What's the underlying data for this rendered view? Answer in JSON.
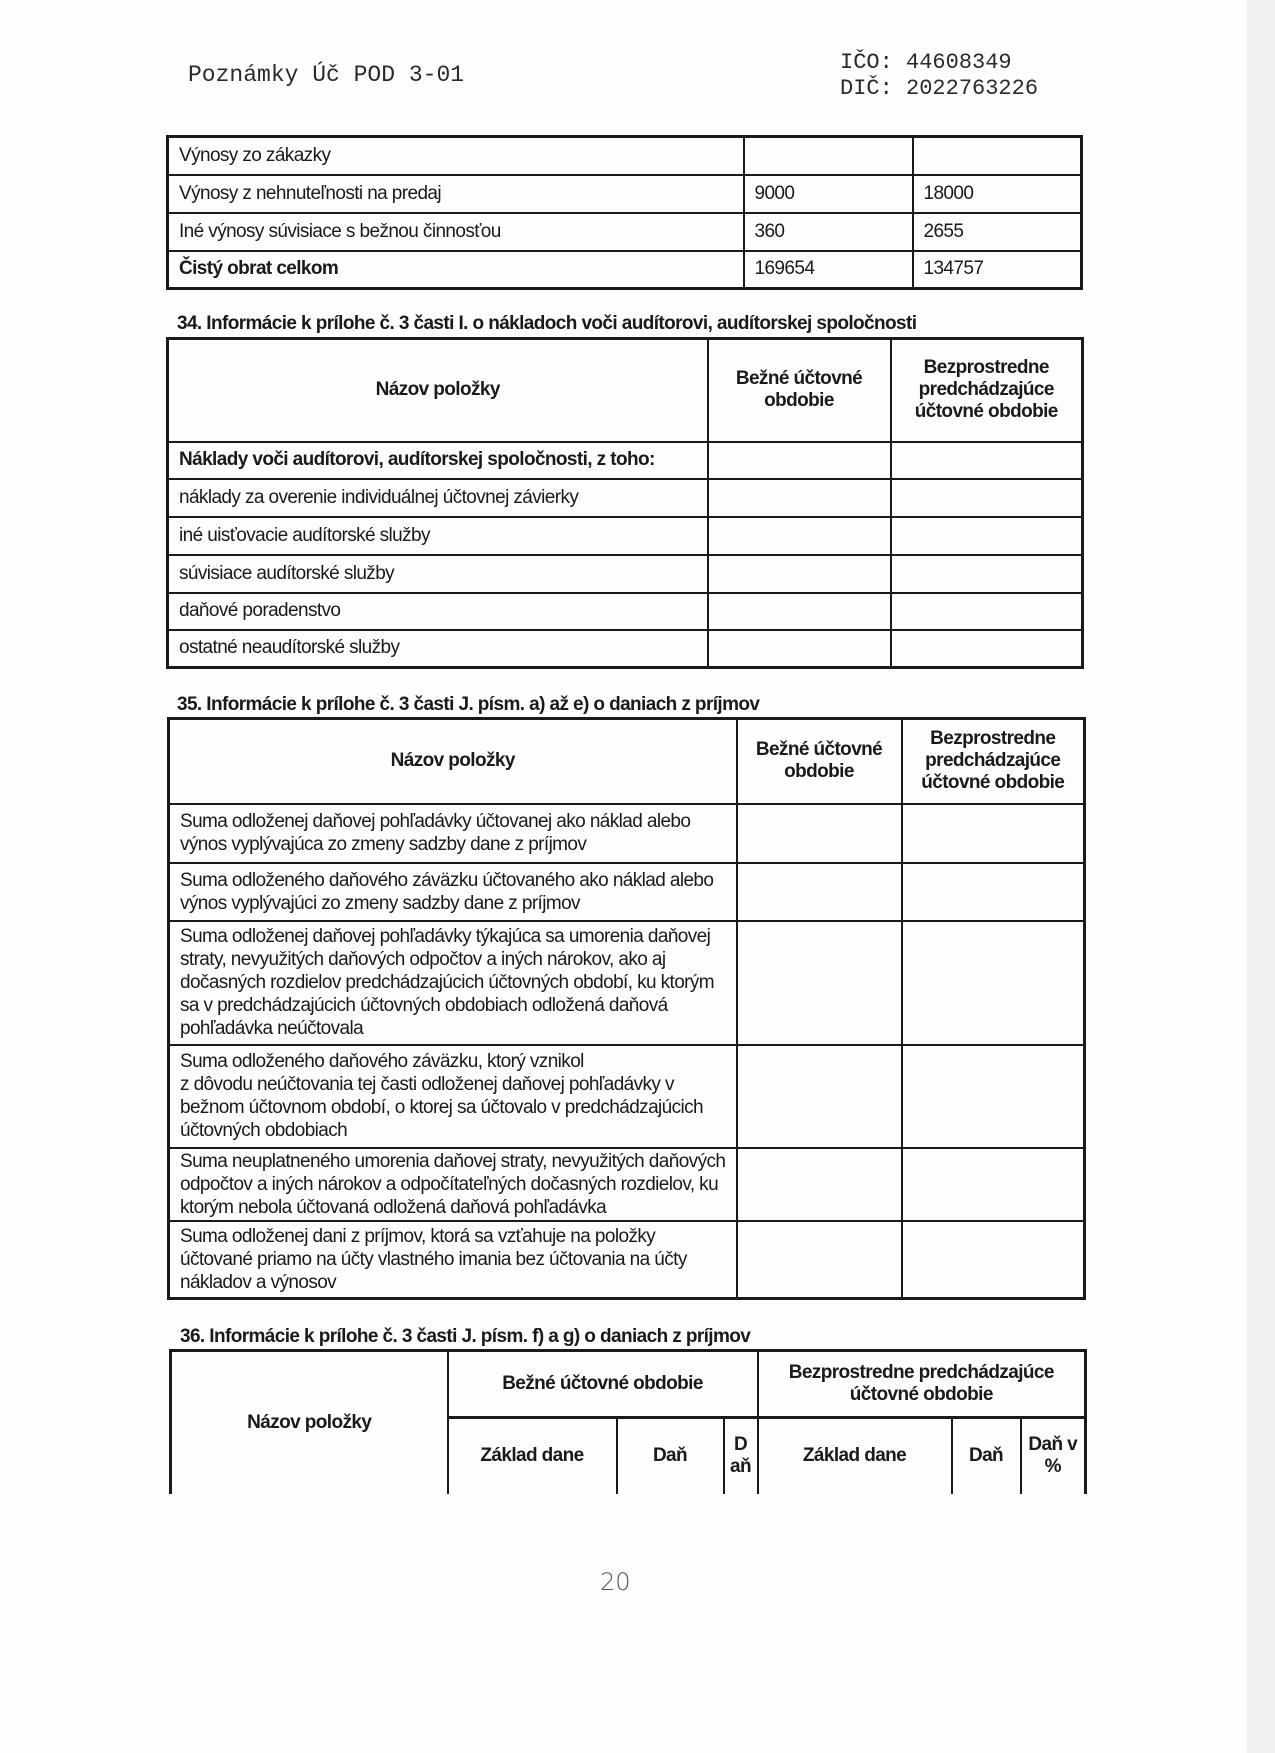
{
  "header": {
    "title": "Poznámky Úč POD 3-01",
    "ico": "IČO: 44608349",
    "dic": "DIČ: 2022763226"
  },
  "revenue_table": {
    "rows": [
      {
        "label": "Výnosy zo zákazky",
        "current": "",
        "previous": ""
      },
      {
        "label": "Výnosy z nehnuteľnosti na predaj",
        "current": "9000",
        "previous": "18000"
      },
      {
        "label": "Iné výnosy súvisiace s bežnou činnosťou",
        "current": "360",
        "previous": "2655"
      },
      {
        "label": "Čistý obrat celkom",
        "current": "169654",
        "previous": "134757"
      }
    ]
  },
  "section34": {
    "heading": "34. Informácie k prílohe č. 3 časti I. o nákladoch voči audítorovi, audítorskej spoločnosti",
    "columns": [
      "Názov položky",
      "Bežné účtovné obdobie",
      "Bezprostredne predchádzajúce účtovné obdobie"
    ],
    "rows": [
      "Náklady voči audítorovi, audítorskej spoločnosti, z toho:",
      "náklady za overenie individuálnej účtovnej závierky",
      "iné uisťovacie audítorské služby",
      "súvisiace audítorské služby",
      "daňové poradenstvo",
      "ostatné neaudítorské služby"
    ]
  },
  "section35": {
    "heading": "35. Informácie k prílohe č. 3 časti J. písm. a) až e) o daniach z príjmov",
    "columns": [
      "Názov položky",
      "Bežné účtovné obdobie",
      "Bezprostredne predchádzajúce účtovné obdobie"
    ],
    "rows": [
      "Suma odloženej daňovej pohľadávky účtovanej ako náklad alebo\nvýnos vyplývajúca zo zmeny sadzby dane z príjmov",
      "Suma odloženého daňového záväzku účtovaného ako náklad alebo\nvýnos vyplývajúci zo zmeny sadzby dane z príjmov",
      "Suma odloženej daňovej pohľadávky týkajúca sa umorenia daňovej\nstraty, nevyužitých daňových odpočtov a iných nárokov, ako aj\ndočasných rozdielov predchádzajúcich účtovných období, ku ktorým\nsa v predchádzajúcich účtovných obdobiach odložená daňová\npohľadávka neúčtovala",
      "Suma odloženého daňového záväzku, ktorý vznikol\nz dôvodu neúčtovania tej časti odloženej daňovej pohľadávky v\nbežnom účtovnom období, o ktorej sa účtovalo v predchádzajúcich\núčtovných obdobiach",
      "Suma neuplatneného umorenia daňovej straty, nevyužitých daňových\nodpočtov a iných nárokov a odpočítateľných dočasných rozdielov, ku\nktorým nebola účtovaná odložená daňová pohľadávka",
      "Suma odloženej dani z príjmov, ktorá sa vzťahuje na položky\núčtované priamo na účty vlastného imania bez účtovania na účty\nnákladov a výnosov"
    ]
  },
  "section36": {
    "heading": "36. Informácie k prílohe č. 3 časti J. písm. f) a g) o daniach z príjmov",
    "name_col": "Názov položky",
    "current_group": "Bežné účtovné obdobie",
    "previous_group": "Bezprostredne predchádzajúce účtovné obdobie",
    "current_cols": [
      "Základ dane",
      "Daň",
      "Daň"
    ],
    "previous_cols": [
      "Základ dane",
      "Daň",
      "Daň v %"
    ]
  },
  "page_number": "20"
}
